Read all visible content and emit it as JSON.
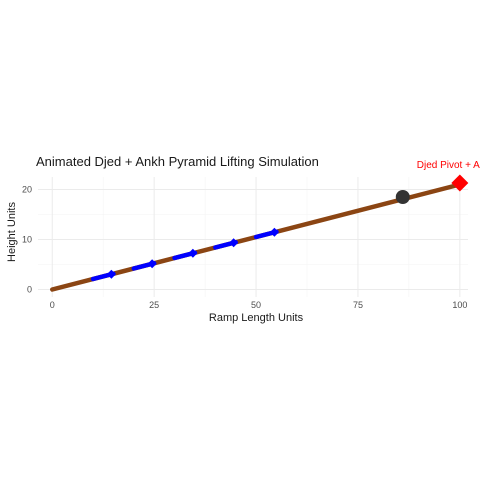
{
  "chart_data": {
    "type": "line",
    "title": "Animated Djed + Ankh Pyramid Lifting Simulation",
    "xlabel": "Ramp Length Units",
    "ylabel": "Height Units",
    "xlim": [
      -3.5,
      102
    ],
    "ylim": [
      -1.5,
      22.5
    ],
    "xticks": [
      0,
      25,
      50,
      75,
      100
    ],
    "yticks": [
      0,
      10,
      20
    ],
    "grid": true,
    "legend": "none",
    "series": [
      {
        "kind": "ramp",
        "color": "#8B4513",
        "x": [
          0,
          100
        ],
        "y": [
          0,
          21
        ]
      },
      {
        "kind": "lifted-segments",
        "color": "#0000FF",
        "segments": [
          {
            "x": [
              10,
              15
            ],
            "y": [
              2.1,
              3.15
            ]
          },
          {
            "x": [
              20,
              25
            ],
            "y": [
              4.2,
              5.25
            ]
          },
          {
            "x": [
              30,
              35
            ],
            "y": [
              6.3,
              7.35
            ]
          },
          {
            "x": [
              40,
              45
            ],
            "y": [
              8.4,
              9.45
            ]
          },
          {
            "x": [
              50,
              55
            ],
            "y": [
              10.5,
              11.55
            ]
          }
        ]
      }
    ],
    "markers": [
      {
        "name": "blue-diamond",
        "color": "#0000FF",
        "shape": "diamond",
        "x": 14.5,
        "y": 3.05
      },
      {
        "name": "blue-diamond",
        "color": "#0000FF",
        "shape": "diamond",
        "x": 24.5,
        "y": 5.15
      },
      {
        "name": "blue-diamond",
        "color": "#0000FF",
        "shape": "diamond",
        "x": 34.5,
        "y": 7.25
      },
      {
        "name": "blue-diamond",
        "color": "#0000FF",
        "shape": "diamond",
        "x": 44.5,
        "y": 9.35
      },
      {
        "name": "blue-diamond",
        "color": "#0000FF",
        "shape": "diamond",
        "x": 54.5,
        "y": 11.45
      },
      {
        "name": "dark-point",
        "color": "#333333",
        "shape": "circle",
        "x": 86,
        "y": 18.5
      },
      {
        "name": "red-pivot",
        "color": "#FF0000",
        "shape": "diamond",
        "x": 100,
        "y": 21.3
      }
    ],
    "annotations": [
      {
        "text": "Djed Pivot + A",
        "color": "#FF0000",
        "x": 100,
        "y": 21.3
      }
    ]
  }
}
